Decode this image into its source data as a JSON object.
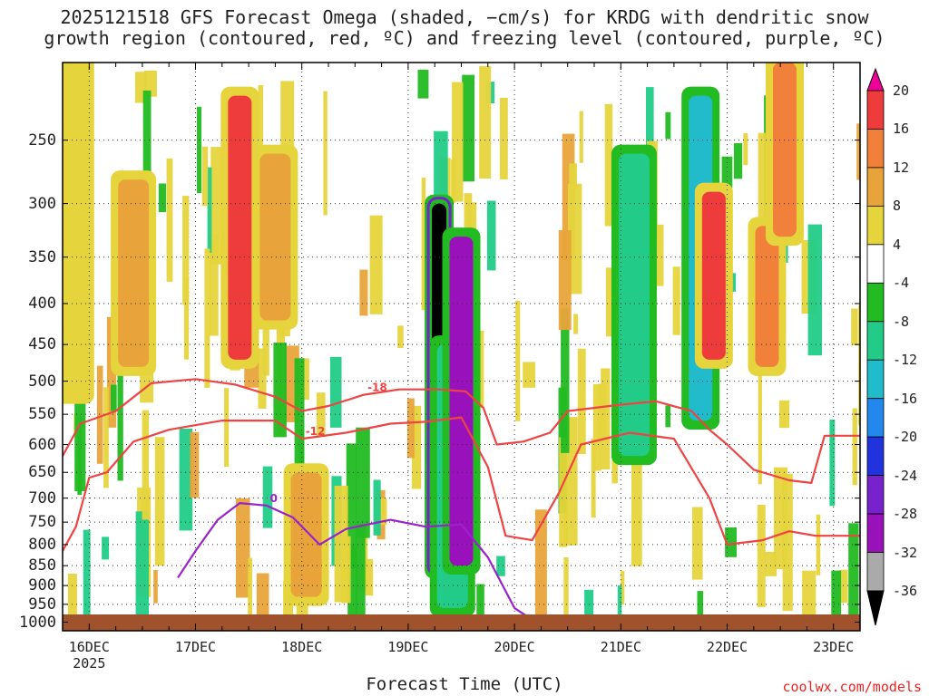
{
  "title": {
    "line1": "2025121518 GFS Forecast Omega (shaded, −cm/s) for KRDG with dendritic snow",
    "line2": "growth region (contoured, red, ºC) and freezing level (contoured, purple, ºC)"
  },
  "credit": "coolwx.com/models",
  "chart_data": {
    "type": "heatmap",
    "xlabel": "Forecast Time (UTC)",
    "ylabel": "",
    "x_ticks": [
      "16DEC",
      "17DEC",
      "18DEC",
      "19DEC",
      "20DEC",
      "21DEC",
      "22DEC",
      "23DEC"
    ],
    "x_year": "2025",
    "x_range": [
      "2025-12-15T18:00Z",
      "2025-12-23T06:00Z"
    ],
    "y_ticks": [
      250,
      300,
      350,
      400,
      450,
      500,
      550,
      600,
      650,
      700,
      750,
      800,
      850,
      900,
      950,
      1000
    ],
    "y_range_hPa": [
      200,
      1025
    ],
    "y_scale": "log-pressure",
    "grid": true,
    "colorbar": {
      "ticks": [
        20,
        16,
        12,
        8,
        4,
        -4,
        -8,
        -12,
        -16,
        -20,
        -24,
        -28,
        -32,
        -36
      ],
      "bins": [
        {
          "range": "> 20",
          "color": "#ee0099"
        },
        {
          "range": "16 to 20",
          "color": "#ee3b3b"
        },
        {
          "range": "12 to 16",
          "color": "#f0803a"
        },
        {
          "range": "8 to 12",
          "color": "#e8a43a"
        },
        {
          "range": "4 to 8",
          "color": "#e6d43c"
        },
        {
          "range": "-4 to 4",
          "color": "#ffffff"
        },
        {
          "range": "-8 to -4",
          "color": "#22bb22"
        },
        {
          "range": "-12 to -8",
          "color": "#22cc88"
        },
        {
          "range": "-16 to -12",
          "color": "#22bbcc"
        },
        {
          "range": "-20 to -16",
          "color": "#2288ee"
        },
        {
          "range": "-24 to -20",
          "color": "#2233dd"
        },
        {
          "range": "-28 to -24",
          "color": "#7722cc"
        },
        {
          "range": "-32 to -28",
          "color": "#9911bb"
        },
        {
          "range": "-36 to -32",
          "color": "#aaaaaa"
        },
        {
          "range": "< -36",
          "color": "#000000"
        }
      ]
    },
    "shaded_features": [
      {
        "time": "2025-12-15T20:00Z",
        "p_top": 200,
        "p_bottom": 520,
        "value": 6
      },
      {
        "time": "2025-12-16T10:00Z",
        "p_top": 280,
        "p_bottom": 480,
        "value": 10
      },
      {
        "time": "2025-12-17T10:00Z",
        "p_top": 220,
        "p_bottom": 470,
        "value": 18
      },
      {
        "time": "2025-12-17T18:00Z",
        "p_top": 260,
        "p_bottom": 420,
        "value": 10
      },
      {
        "time": "2025-12-18T01:00Z",
        "p_top": 650,
        "p_bottom": 930,
        "value": 10
      },
      {
        "time": "2025-12-19T07:00Z",
        "p_top": 300,
        "p_bottom": 860,
        "value": -40
      },
      {
        "time": "2025-12-19T10:00Z",
        "p_top": 450,
        "p_bottom": 960,
        "value": -10
      },
      {
        "time": "2025-12-19T12:00Z",
        "p_top": 330,
        "p_bottom": 850,
        "value": -28
      },
      {
        "time": "2025-12-21T03:00Z",
        "p_top": 260,
        "p_bottom": 620,
        "value": -10
      },
      {
        "time": "2025-12-21T18:00Z",
        "p_top": 220,
        "p_bottom": 560,
        "value": -14
      },
      {
        "time": "2025-12-21T21:00Z",
        "p_top": 290,
        "p_bottom": 470,
        "value": 18
      },
      {
        "time": "2025-12-22T09:00Z",
        "p_top": 320,
        "p_bottom": 480,
        "value": 14
      },
      {
        "time": "2025-12-22T13:00Z",
        "p_top": 200,
        "p_bottom": 330,
        "value": 16
      }
    ],
    "series": [
      {
        "name": "-18",
        "color": "#ee4444",
        "points": [
          [
            "2025-12-15T18:00Z",
            620
          ],
          [
            "2025-12-15T22:00Z",
            565
          ],
          [
            "2025-12-16T06:00Z",
            545
          ],
          [
            "2025-12-16T14:00Z",
            503
          ],
          [
            "2025-12-17T00:00Z",
            497
          ],
          [
            "2025-12-17T09:00Z",
            505
          ],
          [
            "2025-12-17T18:00Z",
            523
          ],
          [
            "2025-12-18T00:00Z",
            545
          ],
          [
            "2025-12-18T06:00Z",
            537
          ],
          [
            "2025-12-18T14:00Z",
            520
          ],
          [
            "2025-12-18T22:00Z",
            512
          ],
          [
            "2025-12-19T07:00Z",
            512
          ],
          [
            "2025-12-19T13:00Z",
            515
          ],
          [
            "2025-12-19T17:00Z",
            540
          ],
          [
            "2025-12-19T20:00Z",
            600
          ],
          [
            "2025-12-20T02:00Z",
            595
          ],
          [
            "2025-12-20T08:00Z",
            580
          ],
          [
            "2025-12-20T12:00Z",
            545
          ],
          [
            "2025-12-21T00:00Z",
            535
          ],
          [
            "2025-12-21T08:00Z",
            530
          ],
          [
            "2025-12-21T16:00Z",
            545
          ],
          [
            "2025-12-21T20:00Z",
            575
          ],
          [
            "2025-12-22T00:00Z",
            600
          ],
          [
            "2025-12-22T06:00Z",
            645
          ],
          [
            "2025-12-22T14:00Z",
            665
          ],
          [
            "2025-12-22T19:00Z",
            670
          ],
          [
            "2025-12-22T22:00Z",
            585
          ],
          [
            "2025-12-23T06:00Z",
            585
          ]
        ]
      },
      {
        "name": "-12",
        "color": "#ee4444",
        "points": [
          [
            "2025-12-15T18:00Z",
            815
          ],
          [
            "2025-12-15T21:00Z",
            760
          ],
          [
            "2025-12-16T00:00Z",
            660
          ],
          [
            "2025-12-16T04:00Z",
            650
          ],
          [
            "2025-12-16T10:00Z",
            595
          ],
          [
            "2025-12-16T18:00Z",
            575
          ],
          [
            "2025-12-17T06:00Z",
            560
          ],
          [
            "2025-12-17T18:00Z",
            560
          ],
          [
            "2025-12-18T00:00Z",
            590
          ],
          [
            "2025-12-18T10:00Z",
            580
          ],
          [
            "2025-12-18T20:00Z",
            565
          ],
          [
            "2025-12-19T04:00Z",
            562
          ],
          [
            "2025-12-19T12:00Z",
            555
          ],
          [
            "2025-12-19T18:00Z",
            640
          ],
          [
            "2025-12-19T22:00Z",
            780
          ],
          [
            "2025-12-20T04:00Z",
            790
          ],
          [
            "2025-12-20T10:00Z",
            690
          ],
          [
            "2025-12-20T15:00Z",
            600
          ],
          [
            "2025-12-21T02:00Z",
            580
          ],
          [
            "2025-12-21T12:00Z",
            590
          ],
          [
            "2025-12-21T20:00Z",
            700
          ],
          [
            "2025-12-22T00:00Z",
            800
          ],
          [
            "2025-12-22T08:00Z",
            790
          ],
          [
            "2025-12-22T14:00Z",
            770
          ],
          [
            "2025-12-22T20:00Z",
            780
          ],
          [
            "2025-12-23T06:00Z",
            780
          ]
        ]
      },
      {
        "name": "0",
        "color": "#9922cc",
        "points": [
          [
            "2025-12-16T20:00Z",
            880
          ],
          [
            "2025-12-17T00:00Z",
            815
          ],
          [
            "2025-12-17T05:00Z",
            745
          ],
          [
            "2025-12-17T10:00Z",
            710
          ],
          [
            "2025-12-17T16:00Z",
            715
          ],
          [
            "2025-12-17T22:00Z",
            740
          ],
          [
            "2025-12-18T04:00Z",
            800
          ],
          [
            "2025-12-18T10:00Z",
            765
          ],
          [
            "2025-12-18T20:00Z",
            745
          ],
          [
            "2025-12-19T04:00Z",
            760
          ],
          [
            "2025-12-19T12:00Z",
            755
          ],
          [
            "2025-12-19T18:00Z",
            830
          ],
          [
            "2025-12-20T00:00Z",
            960
          ],
          [
            "2025-12-20T06:00Z",
            1010
          ]
        ]
      }
    ]
  }
}
